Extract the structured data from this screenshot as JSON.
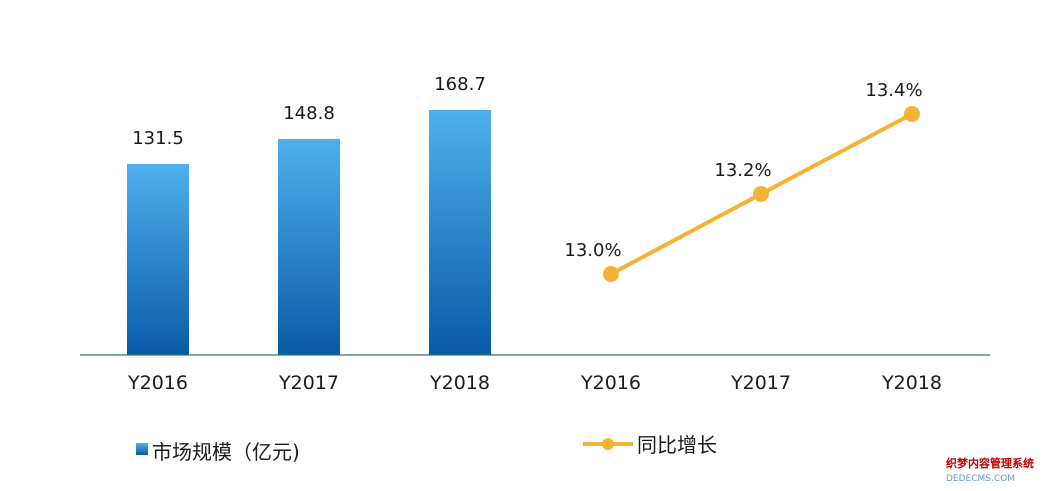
{
  "chart_data": {
    "type": "bar+line",
    "categories": [
      "Y2016",
      "Y2017",
      "Y2018"
    ],
    "bar_series": {
      "name": "市场规模（亿元)",
      "values": [
        131.5,
        148.8,
        168.7
      ],
      "labels": [
        "131.5",
        "148.8",
        "168.7"
      ],
      "color_top": "#4fb0ee",
      "color_bottom": "#0a5aa6"
    },
    "line_series": {
      "name": "同比增长",
      "values": [
        13.0,
        13.2,
        13.4
      ],
      "labels": [
        "13.0%",
        "13.2%",
        "13.4%"
      ],
      "color": "#f5b335"
    },
    "line_categories": [
      "Y2016",
      "Y2017",
      "Y2018"
    ],
    "baseline_color": "#2a7a6a",
    "legend_position": "bottom"
  },
  "watermark": {
    "line1": "织梦内容管理系统",
    "line2": "DEDECMS.COM"
  }
}
